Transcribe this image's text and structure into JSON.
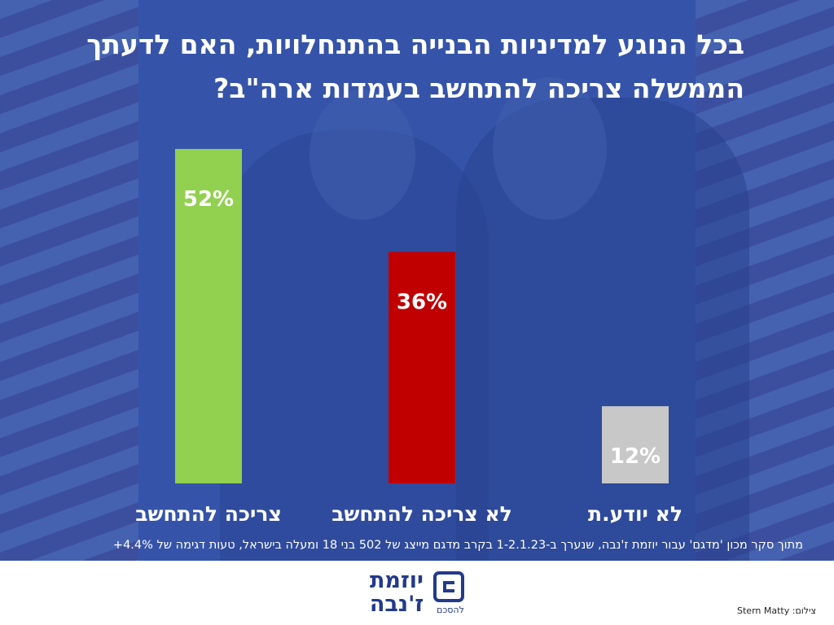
{
  "title": "בכל הנוגע למדיניות הבנייה בהתנחלויות, האם לדעתך הממשלה צריכה להתחשב בעמדות ארה\"ב?",
  "colors": {
    "background": "#3a5aa8",
    "text": "#ffffff",
    "brand": "#233a8b"
  },
  "chart_data": {
    "type": "bar",
    "title": "בכל הנוגע למדיניות הבנייה בהתנחלויות, האם לדעתך הממשלה צריכה להתחשב בעמדות ארה\"ב?",
    "categories": [
      "צריכה להתחשב",
      "לא צריכה להתחשב",
      "לא יודע.ת"
    ],
    "values": [
      52,
      36,
      12
    ],
    "value_labels": [
      "52%",
      "36%",
      "12%"
    ],
    "colors": [
      "#92d050",
      "#c00000",
      "#c8c8c8"
    ],
    "unit": "%",
    "ylim": [
      0,
      52
    ],
    "xlabel": "",
    "ylabel": "",
    "grid": false,
    "legend": "none"
  },
  "source_note": "מתוך סקר מכון 'מדגם' עבור יוזמת ז'נבה, שנערך ב-1-2.1.23 בקרב מדגם מייצג של 502 בני 18 ומעלה בישראל, טעות דגימה של 4.4%+",
  "logo": {
    "name_line1": "יוזמת",
    "name_line2": "ז'נבה",
    "tagline": "להסכם"
  },
  "credit": "צילום: Stern Matty"
}
